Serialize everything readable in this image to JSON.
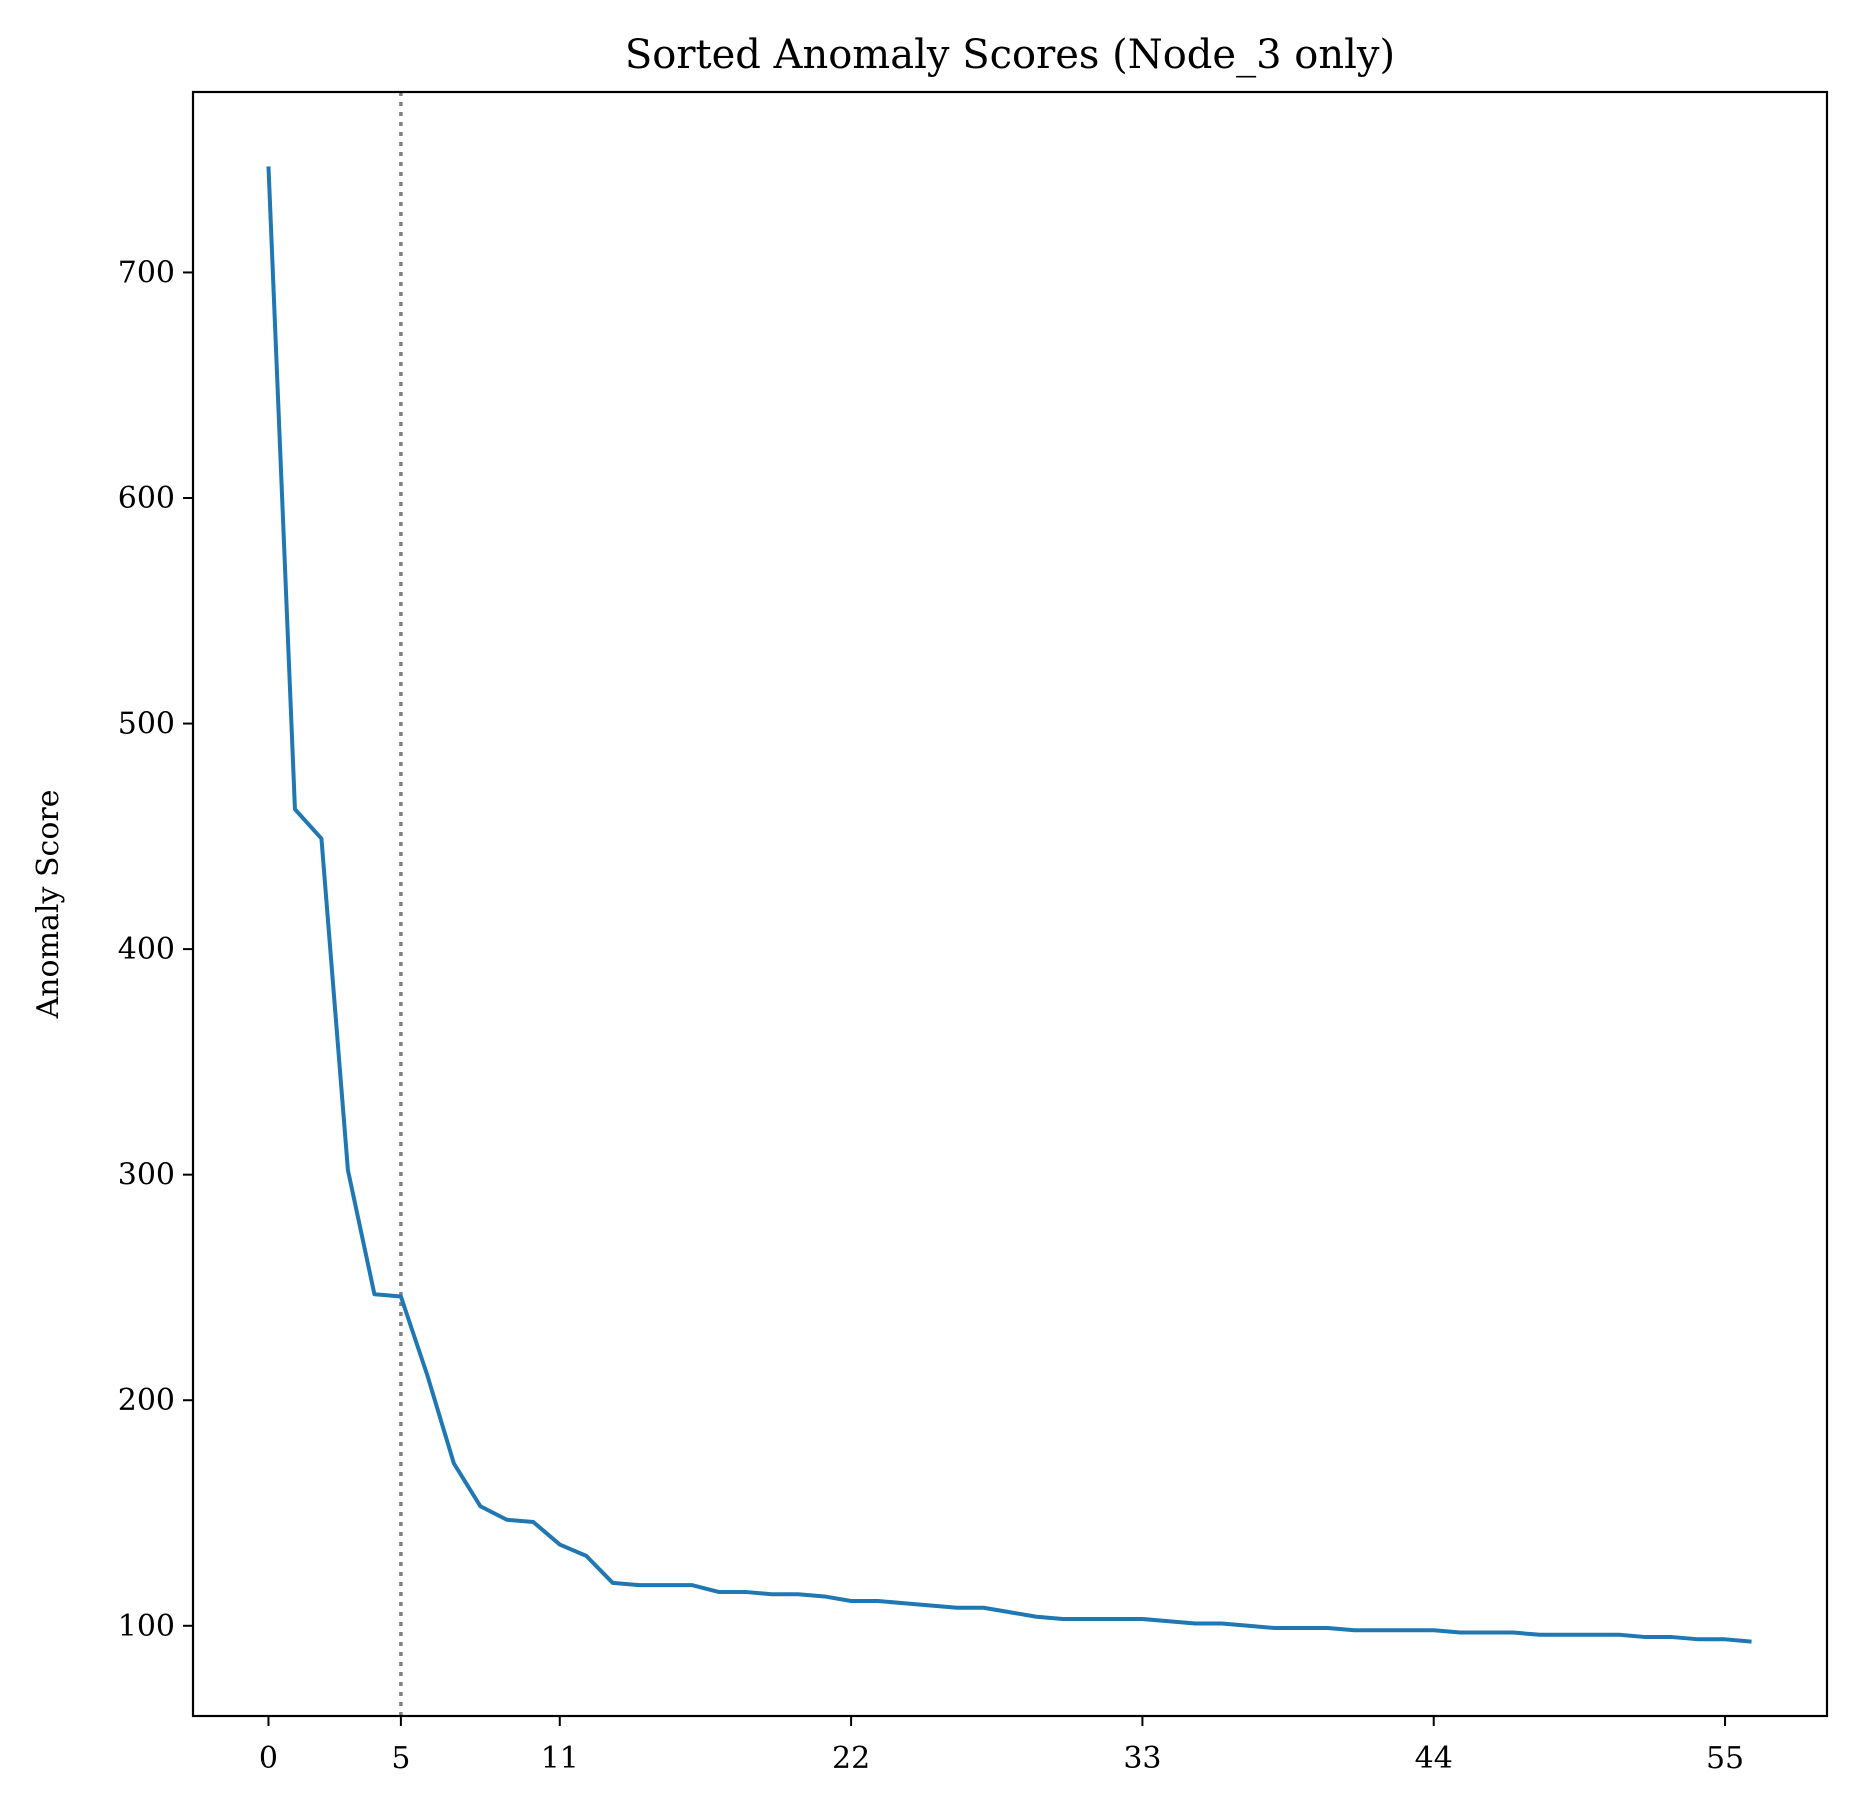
{
  "chart_data": {
    "type": "line",
    "title": "Sorted Anomaly Scores (Node_3 only)",
    "xlabel": "",
    "ylabel": "Anomaly Score",
    "xlim": [
      -2.85,
      58.85
    ],
    "ylim": [
      60,
      780
    ],
    "xticks": [
      0,
      5,
      11,
      22,
      33,
      44,
      55
    ],
    "yticks": [
      100,
      200,
      300,
      400,
      500,
      600,
      700
    ],
    "grid": false,
    "vline": {
      "x": 5,
      "style": "dotted",
      "color": "#808080"
    },
    "series": [
      {
        "color": "#1f77b4",
        "x": [
          0,
          1,
          2,
          3,
          4,
          5,
          6,
          7,
          8,
          9,
          10,
          11,
          12,
          13,
          14,
          15,
          16,
          17,
          18,
          19,
          20,
          21,
          22,
          23,
          24,
          25,
          26,
          27,
          28,
          29,
          30,
          31,
          32,
          33,
          34,
          35,
          36,
          37,
          38,
          39,
          40,
          41,
          42,
          43,
          44,
          45,
          46,
          47,
          48,
          49,
          50,
          51,
          52,
          53,
          54,
          55,
          56
        ],
        "y": [
          747,
          462,
          449,
          302,
          247,
          246,
          211,
          172,
          153,
          147,
          146,
          136,
          131,
          119,
          118,
          118,
          118,
          115,
          115,
          114,
          114,
          113,
          111,
          111,
          110,
          109,
          108,
          108,
          106,
          104,
          103,
          103,
          103,
          103,
          102,
          101,
          101,
          100,
          99,
          99,
          99,
          98,
          98,
          98,
          98,
          97,
          97,
          97,
          96,
          96,
          96,
          96,
          95,
          95,
          94,
          94,
          93
        ]
      }
    ]
  }
}
